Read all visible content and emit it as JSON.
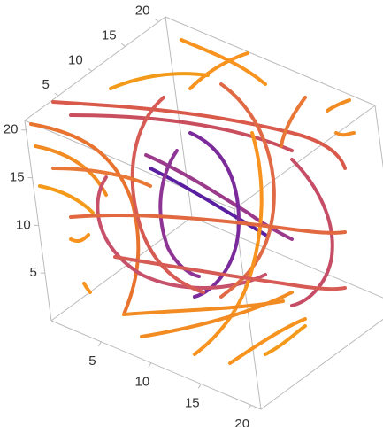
{
  "chart_data": {
    "type": "stream3d",
    "xlim": [
      0,
      21
    ],
    "ylim": [
      0,
      21
    ],
    "zlim": [
      0,
      21
    ],
    "xticks": [
      5,
      10,
      15,
      20
    ],
    "yticks": [
      5,
      10,
      15,
      20
    ],
    "zticks": [
      5,
      10,
      15,
      20
    ],
    "box_color": "#bbbbbb"
  }
}
